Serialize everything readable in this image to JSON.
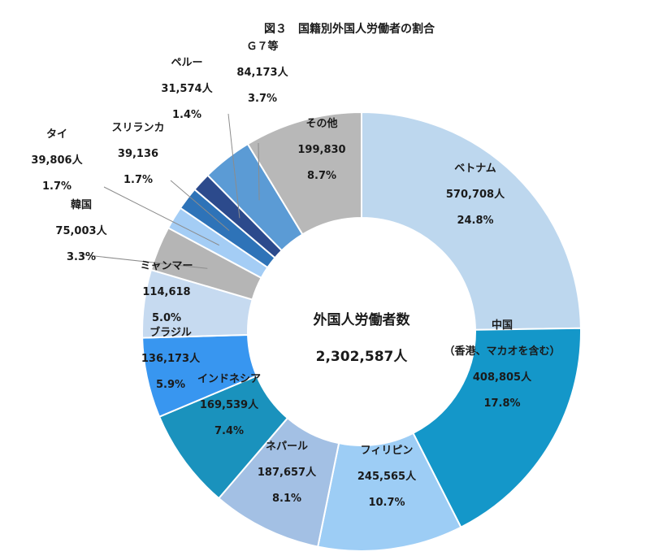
{
  "chart_data": {
    "type": "pie",
    "title": "図３　国籍別外国人労働者の割合",
    "center_label": "外国人労働者数",
    "center_value": "2,302,587人",
    "slices": [
      {
        "label": "ベトナム",
        "count": "570,708人",
        "pct": "24.8%",
        "value": 24.8,
        "color": "#bdd7ee"
      },
      {
        "label": "中国",
        "sublabel": "（香港、マカオを含む）",
        "count": "408,805人",
        "pct": "17.8%",
        "value": 17.8,
        "color": "#1497c9"
      },
      {
        "label": "フィリピン",
        "count": "245,565人",
        "pct": "10.7%",
        "value": 10.7,
        "color": "#9dcdf5"
      },
      {
        "label": "ネパール",
        "count": "187,657人",
        "pct": "8.1%",
        "value": 8.1,
        "color": "#a3c0e4"
      },
      {
        "label": "インドネシア",
        "count": "169,539人",
        "pct": "7.4%",
        "value": 7.4,
        "color": "#1a92bd"
      },
      {
        "label": "ブラジル",
        "count": "136,173人",
        "pct": "5.9%",
        "value": 5.9,
        "color": "#3896f0"
      },
      {
        "label": "ミャンマー",
        "count": "114,618",
        "pct": "5.0%",
        "value": 5.0,
        "color": "#c6daf0"
      },
      {
        "label": "韓国",
        "count": "75,003人",
        "pct": "3.3%",
        "value": 3.3,
        "color": "#b5b5b5"
      },
      {
        "label": "タイ",
        "count": "39,806人",
        "pct": "1.7%",
        "value": 1.7,
        "color": "#a4cdf5"
      },
      {
        "label": "スリランカ",
        "count": "39,136",
        "pct": "1.7%",
        "value": 1.7,
        "color": "#2e73b8"
      },
      {
        "label": "ペルー",
        "count": "31,574人",
        "pct": "1.4%",
        "value": 1.4,
        "color": "#2c4a8c"
      },
      {
        "label": "Ｇ７等",
        "count": "84,173人",
        "pct": "3.7%",
        "value": 3.7,
        "color": "#5b9bd5"
      },
      {
        "label": "その他",
        "count": "199,830",
        "pct": "8.7%",
        "value": 8.7,
        "color": "#b8b8b8"
      }
    ]
  }
}
